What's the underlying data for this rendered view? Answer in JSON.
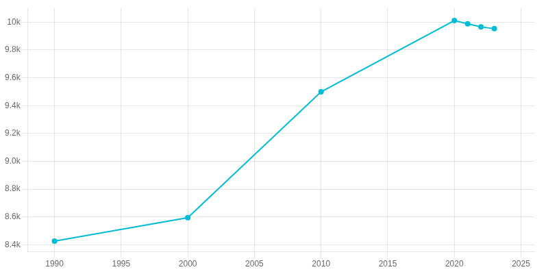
{
  "chart_data": {
    "type": "line",
    "x": [
      1990,
      2000,
      2010,
      2020,
      2021,
      2022,
      2023
    ],
    "values": [
      8427,
      8595,
      9499,
      10011,
      9988,
      9966,
      9953
    ],
    "color": "#00BCD4",
    "marker": "circle",
    "xlim": [
      1988,
      2026
    ],
    "xticks": [
      1990,
      1995,
      2000,
      2005,
      2010,
      2015,
      2020,
      2025
    ],
    "ylim": [
      8350,
      10100
    ],
    "yticks": [
      {
        "value": 8400,
        "label": "8.4k"
      },
      {
        "value": 8600,
        "label": "8.6k"
      },
      {
        "value": 8800,
        "label": "8.8k"
      },
      {
        "value": 9000,
        "label": "9.0k"
      },
      {
        "value": 9200,
        "label": "9.2k"
      },
      {
        "value": 9400,
        "label": "9.4k"
      },
      {
        "value": 9600,
        "label": "9.6k"
      },
      {
        "value": 9800,
        "label": "9.8k"
      },
      {
        "value": 10000,
        "label": "10k"
      }
    ],
    "grid": true
  }
}
